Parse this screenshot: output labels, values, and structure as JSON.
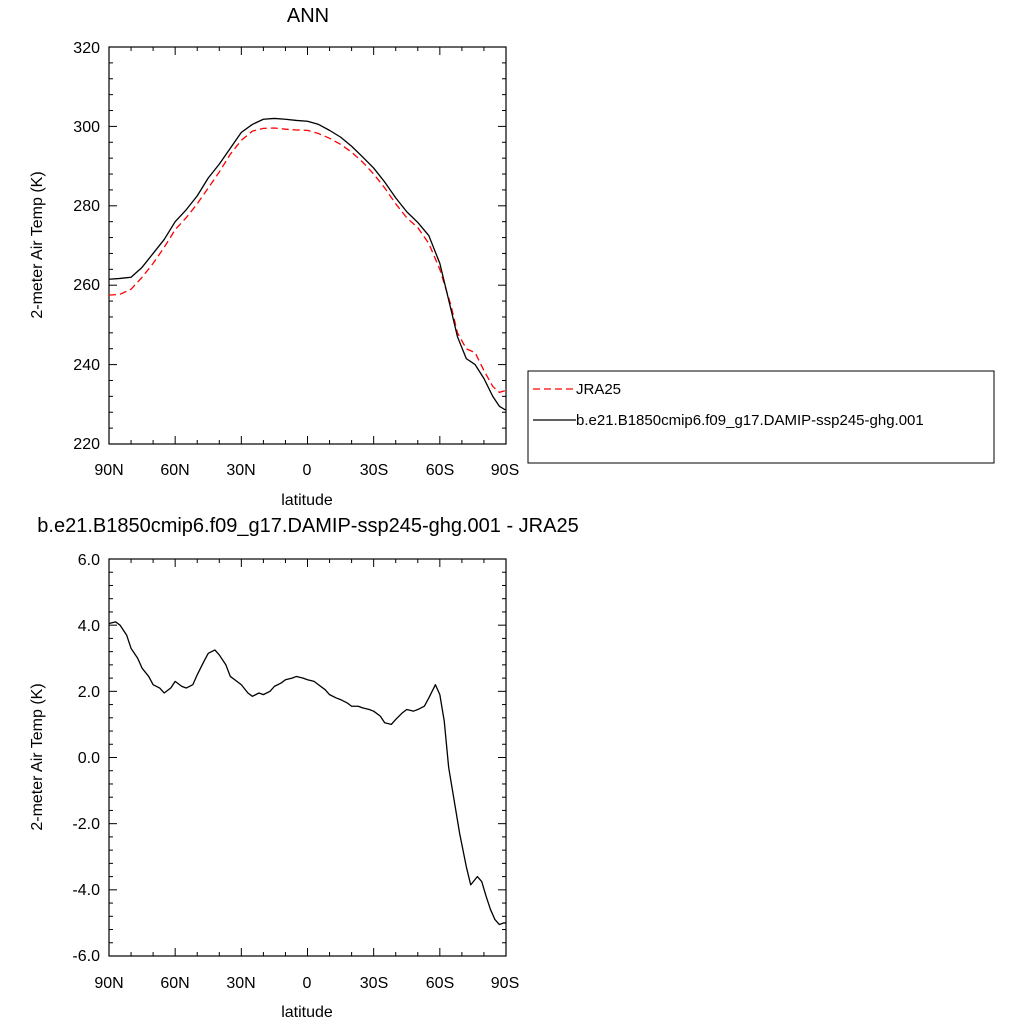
{
  "chart_data": [
    {
      "type": "line",
      "title": "ANN",
      "xlabel": "latitude",
      "ylabel": "2-meter Air Temp (K)",
      "xlim": [
        90,
        -90
      ],
      "ylim": [
        220,
        320
      ],
      "x_ticks": [
        90,
        60,
        30,
        0,
        -30,
        -60,
        -90
      ],
      "x_tick_labels": [
        "90N",
        "60N",
        "30N",
        "0",
        "30S",
        "60S",
        "90S"
      ],
      "y_ticks": [
        220,
        240,
        260,
        280,
        300,
        320
      ],
      "y_tick_labels": [
        "220",
        "240",
        "260",
        "280",
        "300",
        "320"
      ],
      "legend": "right",
      "series": [
        {
          "name": "JRA25",
          "color": "#ff0000",
          "dash": "dashed",
          "x": [
            90,
            85,
            80,
            75,
            70,
            65,
            60,
            55,
            50,
            45,
            40,
            35,
            30,
            25,
            20,
            15,
            10,
            5,
            0,
            -5,
            -10,
            -15,
            -20,
            -25,
            -30,
            -35,
            -40,
            -45,
            -50,
            -55,
            -60,
            -65,
            -68,
            -72,
            -76,
            -80,
            -84,
            -87,
            -90
          ],
          "y": [
            257.5,
            257.7,
            259.0,
            262.0,
            265.5,
            269.5,
            274.0,
            277.0,
            280.5,
            284.5,
            288.5,
            293.0,
            296.5,
            298.8,
            299.5,
            299.6,
            299.3,
            299.1,
            299.0,
            298.2,
            297.0,
            295.5,
            293.5,
            291.0,
            288.0,
            284.5,
            280.5,
            277.0,
            274.5,
            270.5,
            264.0,
            255.0,
            248.0,
            244.0,
            243.0,
            238.5,
            234.5,
            233.0,
            233.5
          ]
        },
        {
          "name": "b.e21.B1850cmip6.f09_g17.DAMIP-ssp245-ghg.001",
          "color": "#000000",
          "dash": "solid",
          "x": [
            90,
            85,
            80,
            75,
            70,
            65,
            60,
            55,
            50,
            45,
            40,
            35,
            30,
            25,
            20,
            15,
            10,
            5,
            0,
            -5,
            -10,
            -15,
            -20,
            -25,
            -30,
            -35,
            -40,
            -45,
            -50,
            -55,
            -60,
            -65,
            -68,
            -72,
            -76,
            -80,
            -84,
            -87,
            -90
          ],
          "y": [
            261.5,
            261.7,
            262.0,
            264.5,
            268.0,
            271.5,
            276.0,
            279.0,
            282.5,
            287.0,
            290.5,
            294.5,
            298.5,
            300.5,
            301.8,
            302.0,
            301.8,
            301.5,
            301.3,
            300.5,
            299.0,
            297.3,
            295.0,
            292.3,
            289.5,
            286.0,
            282.0,
            278.5,
            275.8,
            272.5,
            265.5,
            254.0,
            247.0,
            241.5,
            240.0,
            236.5,
            232.0,
            229.5,
            228.5
          ]
        }
      ]
    },
    {
      "type": "line",
      "title": "b.e21.B1850cmip6.f09_g17.DAMIP-ssp245-ghg.001 - JRA25",
      "xlabel": "latitude",
      "ylabel": "2-meter Air Temp (K)",
      "xlim": [
        90,
        -90
      ],
      "ylim": [
        -6,
        6
      ],
      "x_ticks": [
        90,
        60,
        30,
        0,
        -30,
        -60,
        -90
      ],
      "x_tick_labels": [
        "90N",
        "60N",
        "30N",
        "0",
        "30S",
        "60S",
        "90S"
      ],
      "y_ticks": [
        -6,
        -4,
        -2,
        0,
        2,
        4,
        6
      ],
      "y_tick_labels": [
        "-6.0",
        "-4.0",
        "-2.0",
        "0.0",
        "2.0",
        "4.0",
        "6.0"
      ],
      "series": [
        {
          "color": "#000000",
          "dash": "solid",
          "x": [
            90,
            87,
            85,
            82,
            80,
            77,
            75,
            72,
            70,
            67,
            65,
            62,
            60,
            57,
            55,
            52,
            50,
            47,
            45,
            42,
            40,
            37,
            35,
            32,
            30,
            27,
            25,
            22,
            20,
            17,
            15,
            12,
            10,
            7,
            5,
            2,
            0,
            -3,
            -5,
            -8,
            -10,
            -13,
            -15,
            -18,
            -20,
            -23,
            -25,
            -28,
            -30,
            -33,
            -35,
            -38,
            -40,
            -43,
            -45,
            -48,
            -50,
            -53,
            -55,
            -58,
            -60,
            -62,
            -64,
            -67,
            -69,
            -72,
            -74,
            -77,
            -79,
            -81,
            -83,
            -85,
            -87,
            -89,
            -90
          ],
          "y": [
            4.05,
            4.1,
            4.0,
            3.7,
            3.3,
            3.0,
            2.7,
            2.45,
            2.2,
            2.1,
            1.95,
            2.1,
            2.3,
            2.15,
            2.1,
            2.2,
            2.5,
            2.9,
            3.15,
            3.25,
            3.1,
            2.8,
            2.45,
            2.3,
            2.2,
            1.95,
            1.85,
            1.95,
            1.9,
            2.0,
            2.15,
            2.25,
            2.35,
            2.4,
            2.45,
            2.4,
            2.35,
            2.3,
            2.2,
            2.05,
            1.9,
            1.8,
            1.75,
            1.65,
            1.55,
            1.55,
            1.5,
            1.45,
            1.4,
            1.25,
            1.05,
            1.0,
            1.15,
            1.35,
            1.45,
            1.4,
            1.45,
            1.55,
            1.8,
            2.2,
            1.9,
            1.1,
            -0.3,
            -1.5,
            -2.3,
            -3.3,
            -3.85,
            -3.6,
            -3.75,
            -4.2,
            -4.6,
            -4.9,
            -5.05,
            -5.0,
            -5.0
          ]
        }
      ]
    }
  ]
}
